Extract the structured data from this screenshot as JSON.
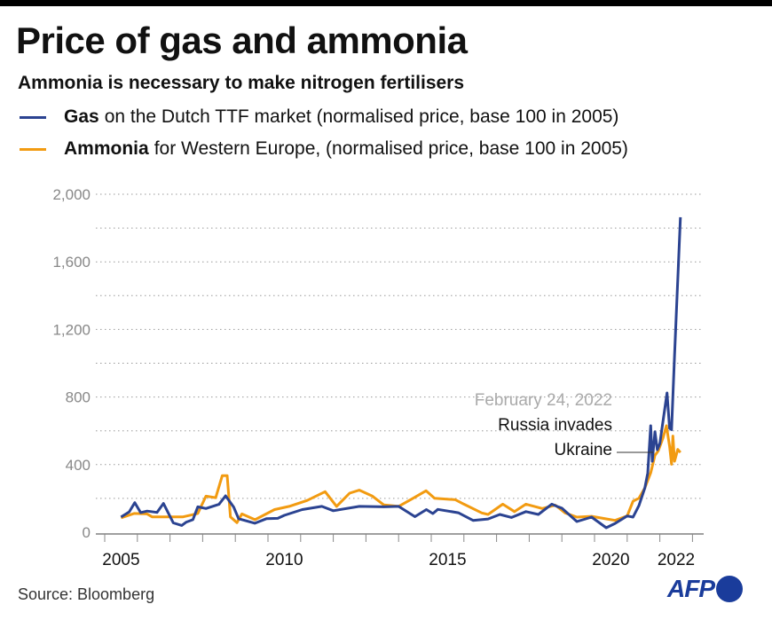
{
  "title": "Price of gas and ammonia",
  "subtitle": "Ammonia is necessary to make nitrogen fertilisers",
  "legend": [
    {
      "bold": "Gas",
      "text": "on the Dutch TTF market (normalised price, base 100 in 2005)",
      "color": "#2b4391"
    },
    {
      "bold": "Ammonia",
      "text": "for Western Europe, (normalised price, base 100 in 2005)",
      "color": "#f29b11"
    }
  ],
  "source": "Source: Bloomberg",
  "logo": "AFP",
  "chart_data": {
    "type": "line",
    "xlim": [
      2005,
      2023
    ],
    "ylim": [
      0,
      2000
    ],
    "y_ticks": [
      0,
      400,
      800,
      1200,
      1600,
      2000
    ],
    "y_tick_labels": [
      "0",
      "400",
      "800",
      "1,200",
      "1,600",
      "2,000"
    ],
    "y_grid_step": 200,
    "grid": "dotted horizontal",
    "x_tick_labels": [
      "2005",
      "2010",
      "2015",
      "2020",
      "2022"
    ],
    "annotation": {
      "date": "February 24, 2022",
      "line1": "Russia invades",
      "line2": "Ukraine",
      "x": 2021.8
    },
    "series": [
      {
        "name": "Gas",
        "color": "#2b4391",
        "points": [
          [
            2005.5,
            90
          ],
          [
            2005.75,
            120
          ],
          [
            2005.92,
            175
          ],
          [
            2006.1,
            116
          ],
          [
            2006.3,
            125
          ],
          [
            2006.6,
            117
          ],
          [
            2006.8,
            170
          ],
          [
            2007.1,
            55
          ],
          [
            2007.36,
            40
          ],
          [
            2007.5,
            60
          ],
          [
            2007.7,
            74
          ],
          [
            2007.85,
            150
          ],
          [
            2008.1,
            140
          ],
          [
            2008.5,
            165
          ],
          [
            2008.7,
            215
          ],
          [
            2008.95,
            148
          ],
          [
            2009.1,
            80
          ],
          [
            2009.6,
            53
          ],
          [
            2009.95,
            80
          ],
          [
            2010.3,
            82
          ],
          [
            2010.5,
            100
          ],
          [
            2011.05,
            134
          ],
          [
            2011.65,
            153
          ],
          [
            2012.0,
            127
          ],
          [
            2012.8,
            153
          ],
          [
            2013.55,
            150
          ],
          [
            2014.0,
            153
          ],
          [
            2014.5,
            92
          ],
          [
            2014.85,
            134
          ],
          [
            2015.05,
            110
          ],
          [
            2015.2,
            135
          ],
          [
            2015.83,
            115
          ],
          [
            2016.28,
            70
          ],
          [
            2016.74,
            78
          ],
          [
            2017.1,
            105
          ],
          [
            2017.46,
            87
          ],
          [
            2017.9,
            122
          ],
          [
            2018.28,
            105
          ],
          [
            2018.69,
            166
          ],
          [
            2018.9,
            149
          ],
          [
            2019.0,
            142
          ],
          [
            2019.46,
            63
          ],
          [
            2019.91,
            89
          ],
          [
            2020.36,
            26
          ],
          [
            2020.63,
            52
          ],
          [
            2021.0,
            96
          ],
          [
            2021.18,
            89
          ],
          [
            2021.36,
            157
          ],
          [
            2021.54,
            262
          ],
          [
            2021.63,
            351
          ],
          [
            2021.72,
            630
          ],
          [
            2021.77,
            420
          ],
          [
            2021.85,
            595
          ],
          [
            2021.92,
            488
          ],
          [
            2022.0,
            525
          ],
          [
            2022.22,
            824
          ],
          [
            2022.3,
            614
          ],
          [
            2022.36,
            607
          ],
          [
            2022.45,
            1050
          ],
          [
            2022.63,
            1864
          ]
        ]
      },
      {
        "name": "Ammonia",
        "color": "#f29b11",
        "points": [
          [
            2005.5,
            85
          ],
          [
            2005.9,
            111
          ],
          [
            2006.3,
            108
          ],
          [
            2006.45,
            91
          ],
          [
            2007.4,
            91
          ],
          [
            2007.85,
            111
          ],
          [
            2008.1,
            213
          ],
          [
            2008.4,
            204
          ],
          [
            2008.6,
            335
          ],
          [
            2008.75,
            335
          ],
          [
            2008.85,
            91
          ],
          [
            2009.05,
            56
          ],
          [
            2009.2,
            108
          ],
          [
            2009.6,
            74
          ],
          [
            2010.2,
            134
          ],
          [
            2010.65,
            153
          ],
          [
            2011.2,
            188
          ],
          [
            2011.75,
            240
          ],
          [
            2012.1,
            153
          ],
          [
            2012.5,
            231
          ],
          [
            2012.8,
            249
          ],
          [
            2013.2,
            213
          ],
          [
            2013.55,
            161
          ],
          [
            2014.0,
            153
          ],
          [
            2014.4,
            196
          ],
          [
            2014.84,
            245
          ],
          [
            2015.1,
            201
          ],
          [
            2015.74,
            192
          ],
          [
            2016.0,
            166
          ],
          [
            2016.55,
            114
          ],
          [
            2016.74,
            105
          ],
          [
            2017.19,
            166
          ],
          [
            2017.55,
            122
          ],
          [
            2017.9,
            166
          ],
          [
            2018.4,
            140
          ],
          [
            2018.8,
            160
          ],
          [
            2019.1,
            114
          ],
          [
            2019.46,
            89
          ],
          [
            2019.91,
            94
          ],
          [
            2020.36,
            79
          ],
          [
            2020.63,
            70
          ],
          [
            2021.0,
            96
          ],
          [
            2021.18,
            183
          ],
          [
            2021.36,
            201
          ],
          [
            2021.54,
            262
          ],
          [
            2021.72,
            351
          ],
          [
            2021.85,
            455
          ],
          [
            2021.95,
            481
          ],
          [
            2022.1,
            560
          ],
          [
            2022.2,
            630
          ],
          [
            2022.3,
            508
          ],
          [
            2022.36,
            402
          ],
          [
            2022.4,
            569
          ],
          [
            2022.45,
            420
          ],
          [
            2022.55,
            490
          ],
          [
            2022.63,
            472
          ]
        ]
      }
    ]
  }
}
